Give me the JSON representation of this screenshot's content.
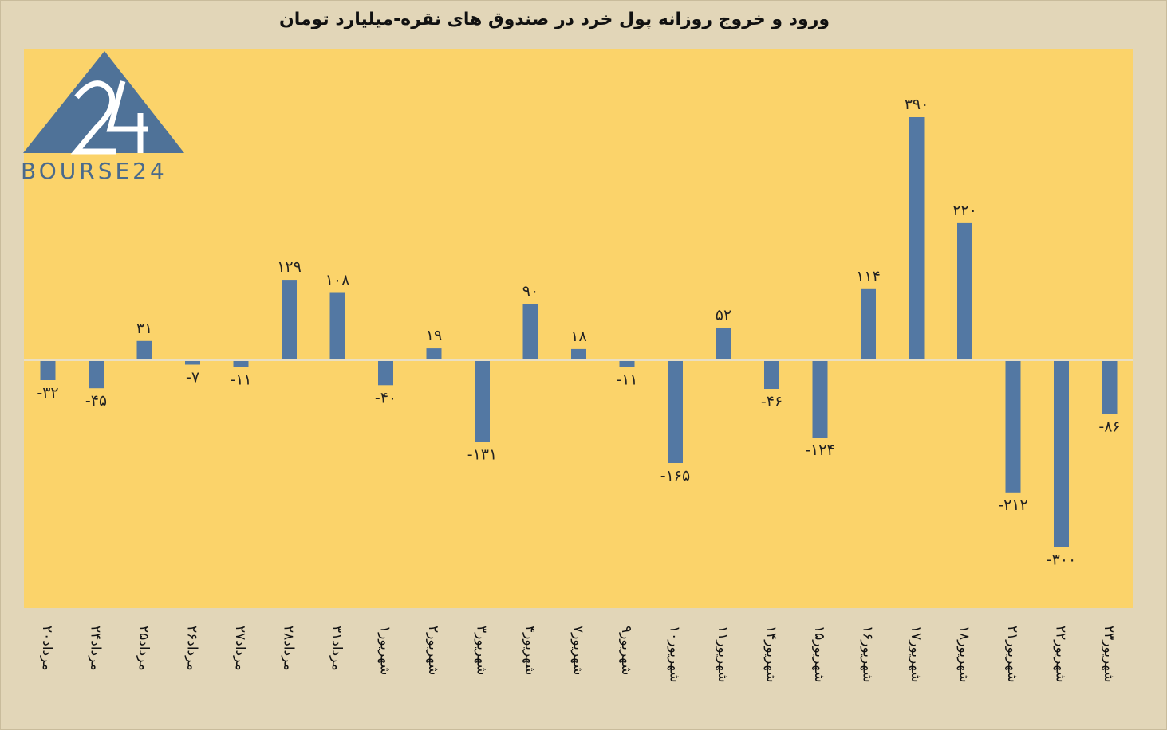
{
  "title": "ورود و خروج روزانه پول خرد در صندوق های نقره-میلیارد تومان",
  "logo": {
    "text": "BOURSE24",
    "mark": "24"
  },
  "colors": {
    "plot_bg": "#fbd36a",
    "bar": "#5378a3",
    "page_bg": "#e2d6b8",
    "zero_line": "#eadfc3"
  },
  "chart_data": {
    "type": "bar",
    "title": "ورود و خروج روزانه پول خرد در صندوق های نقره-میلیارد تومان",
    "xlabel": "",
    "ylabel": "",
    "ylim": [
      -380,
      460
    ],
    "grid": false,
    "legend": "none",
    "categories": [
      "۲۰مرداد",
      "۲۴مرداد",
      "۲۵مرداد",
      "۲۶مرداد",
      "۲۷مرداد",
      "۲۸مرداد",
      "۳۱مرداد",
      "۱شهریور",
      "۲شهریور",
      "۳شهریور",
      "۴شهریور",
      "۷شهریور",
      "۹شهریور",
      "۱۰شهریور",
      "۱۱شهریور",
      "۱۴شهریور",
      "۱۵شهریور",
      "۱۶شهریور",
      "۱۷شهریور",
      "۱۸شهریور",
      "۲۱شهریور",
      "۲۲شهریور",
      "۲۳شهریور"
    ],
    "values": [
      -32,
      -45,
      31,
      -7,
      -11,
      129,
      108,
      -40,
      19,
      -131,
      90,
      18,
      -11,
      -165,
      52,
      -46,
      -124,
      114,
      390,
      220,
      -212,
      -300,
      -86
    ],
    "data_labels": [
      "-۳۲",
      "-۴۵",
      "۳۱",
      "-۷",
      "-۱۱",
      "۱۲۹",
      "۱۰۸",
      "-۴۰",
      "۱۹",
      "-۱۳۱",
      "۹۰",
      "۱۸",
      "-۱۱",
      "-۱۶۵",
      "۵۲",
      "-۴۶",
      "-۱۲۴",
      "۱۱۴",
      "۳۹۰",
      "۲۲۰",
      "-۲۱۲",
      "-۳۰۰",
      "-۸۶"
    ]
  }
}
